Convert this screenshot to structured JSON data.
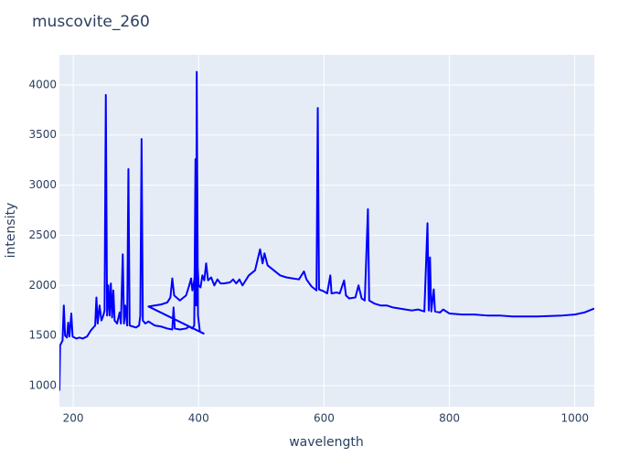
{
  "chart_data": {
    "type": "line",
    "title": "muscovite_260",
    "x_label": "wavelength",
    "y_label": "intensity",
    "grid": true,
    "background": "#e5ecf6",
    "grid_color": "#ffffff",
    "xlim": [
      178,
      1031
    ],
    "ylim": [
      790,
      4300
    ],
    "xticks": [
      200,
      400,
      600,
      800,
      1000
    ],
    "yticks": [
      1000,
      1500,
      2000,
      2500,
      3000,
      3500,
      4000
    ],
    "series": [
      {
        "name": "muscovite_260",
        "color": "#0000ff",
        "x": [
          178,
          179,
          183,
          185,
          187,
          190,
          192,
          194,
          197,
          199,
          205,
          210,
          215,
          222,
          228,
          235,
          237,
          239,
          242,
          245,
          248,
          250,
          252,
          254,
          256,
          258,
          260,
          262,
          264,
          266,
          270,
          274,
          276,
          279,
          281,
          283,
          286,
          288,
          290,
          295,
          300,
          305,
          307,
          309,
          311,
          315,
          320,
          330,
          340,
          350,
          358,
          360,
          362,
          370,
          380,
          385,
          390,
          393,
          395,
          396,
          397,
          399,
          402,
          408,
          320,
          330,
          340,
          350,
          355,
          358,
          361,
          370,
          380,
          385,
          388,
          390,
          393,
          395,
          397,
          400,
          403,
          406,
          409,
          412,
          415,
          420,
          425,
          430,
          435,
          440,
          450,
          455,
          460,
          465,
          470,
          480,
          490,
          498,
          502,
          505,
          510,
          520,
          530,
          540,
          550,
          560,
          568,
          572,
          580,
          588,
          590,
          592,
          600,
          605,
          610,
          612,
          620,
          625,
          632,
          635,
          640,
          650,
          655,
          660,
          665,
          670,
          672,
          680,
          690,
          700,
          710,
          720,
          730,
          740,
          750,
          760,
          765,
          767,
          769,
          771,
          775,
          777,
          785,
          790,
          800,
          820,
          840,
          860,
          880,
          900,
          920,
          940,
          960,
          980,
          1000,
          1015,
          1031
        ],
        "values": [
          950,
          1400,
          1450,
          1800,
          1500,
          1480,
          1630,
          1490,
          1720,
          1490,
          1470,
          1480,
          1470,
          1490,
          1550,
          1600,
          1880,
          1620,
          1800,
          1650,
          1700,
          1750,
          3900,
          1700,
          2000,
          1700,
          2020,
          1680,
          1950,
          1650,
          1620,
          1730,
          1620,
          2310,
          1620,
          1800,
          1600,
          3160,
          1600,
          1590,
          1580,
          1600,
          1700,
          3460,
          1650,
          1620,
          1640,
          1600,
          1590,
          1570,
          1560,
          1780,
          1570,
          1560,
          1570,
          1590,
          1570,
          1600,
          3260,
          1800,
          4130,
          1700,
          1540,
          1520,
          1790,
          1800,
          1810,
          1830,
          1880,
          2070,
          1900,
          1850,
          1900,
          2000,
          2070,
          1950,
          2050,
          2200,
          2400,
          2000,
          1980,
          2100,
          2050,
          2220,
          2050,
          2080,
          2000,
          2060,
          2020,
          2020,
          2030,
          2060,
          2020,
          2060,
          2000,
          2100,
          2150,
          2360,
          2220,
          2320,
          2200,
          2150,
          2100,
          2080,
          2070,
          2060,
          2140,
          2060,
          1990,
          1950,
          3770,
          1960,
          1940,
          1920,
          2100,
          1920,
          1930,
          1920,
          2050,
          1900,
          1870,
          1880,
          2000,
          1870,
          1850,
          2760,
          1850,
          1820,
          1800,
          1800,
          1780,
          1770,
          1760,
          1750,
          1760,
          1740,
          2620,
          1750,
          2280,
          1740,
          1960,
          1740,
          1730,
          1760,
          1720,
          1710,
          1710,
          1700,
          1700,
          1690,
          1690,
          1690,
          1695,
          1700,
          1710,
          1730,
          1770
        ]
      }
    ]
  }
}
